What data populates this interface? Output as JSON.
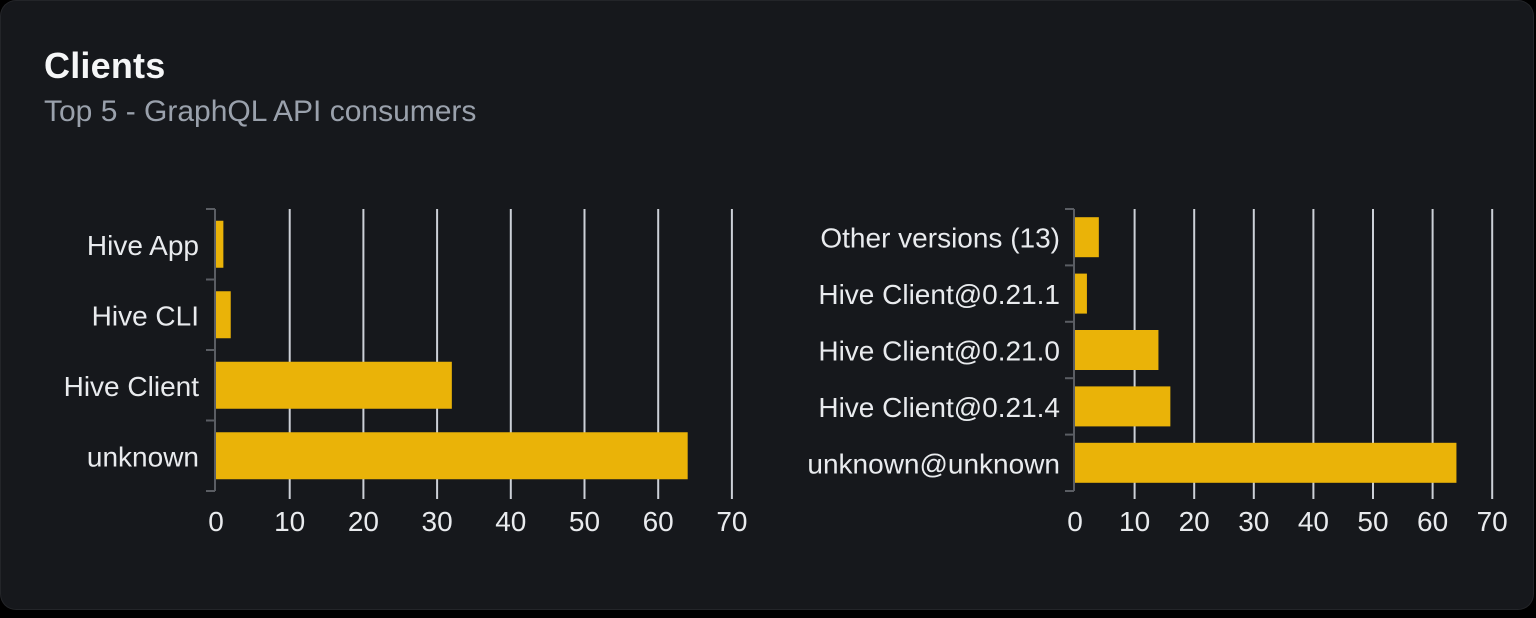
{
  "header": {
    "title": "Clients",
    "subtitle": "Top 5 - GraphQL API consumers"
  },
  "colors": {
    "page_bg": "#000000",
    "card_bg": "#16181c",
    "bar": "#eab308",
    "gridline": "#ccd0d7",
    "axis": "#5a5d63",
    "tick_text": "#e9ebee",
    "category_text": "#e9ebee",
    "title_text": "#f5f6f7",
    "subtitle_text": "#9aa1ac"
  },
  "chart_data": [
    {
      "type": "bar",
      "orientation": "horizontal",
      "title": "",
      "categories": [
        "Hive App",
        "Hive CLI",
        "Hive Client",
        "unknown"
      ],
      "values": [
        1,
        2,
        32,
        64
      ],
      "xlim": [
        0,
        70
      ],
      "xticks": [
        0,
        10,
        20,
        30,
        40,
        50,
        60,
        70
      ],
      "grid": true,
      "legend": false,
      "bar_color": "#eab308"
    },
    {
      "type": "bar",
      "orientation": "horizontal",
      "title": "",
      "categories": [
        "Other versions (13)",
        "Hive Client@0.21.1",
        "Hive Client@0.21.0",
        "Hive Client@0.21.4",
        "unknown@unknown"
      ],
      "values": [
        4,
        2,
        14,
        16,
        64
      ],
      "xlim": [
        0,
        70
      ],
      "xticks": [
        0,
        10,
        20,
        30,
        40,
        50,
        60,
        70
      ],
      "grid": true,
      "legend": false,
      "bar_color": "#eab308"
    }
  ]
}
